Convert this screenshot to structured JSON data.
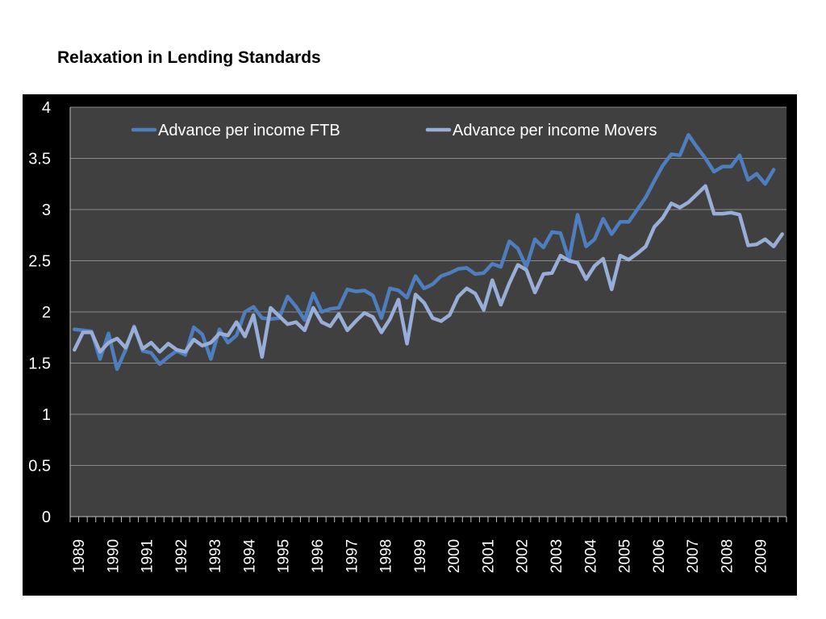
{
  "page": {
    "title": "Relaxation in Lending Standards"
  },
  "chart_data": {
    "type": "line",
    "title": "Relaxation in Lending Standards",
    "xlabel": "",
    "ylabel": "",
    "ylim": [
      0,
      4
    ],
    "y_ticks": [
      "0",
      "0.5",
      "1",
      "1.5",
      "2",
      "2.5",
      "3",
      "3.5",
      "4"
    ],
    "x_tick_labels": [
      "1989",
      "1990",
      "1991",
      "1992",
      "1993",
      "1994",
      "1995",
      "1996",
      "1997",
      "1998",
      "1999",
      "2000",
      "2001",
      "2002",
      "2003",
      "2004",
      "2005",
      "2006",
      "2007",
      "2008",
      "2009"
    ],
    "grid": true,
    "legend": "top",
    "background_color": "#404040",
    "frame_color": "#000000",
    "series": [
      {
        "name": "Advance per income FTB",
        "color": "#4f7ebe",
        "values": [
          1.83,
          1.82,
          1.81,
          1.54,
          1.79,
          1.44,
          1.63,
          1.86,
          1.62,
          1.6,
          1.49,
          1.56,
          1.62,
          1.58,
          1.85,
          1.78,
          1.54,
          1.83,
          1.7,
          1.77,
          2.0,
          2.05,
          1.94,
          1.93,
          1.94,
          2.15,
          2.05,
          1.92,
          2.18,
          2.0,
          2.03,
          2.04,
          2.22,
          2.2,
          2.21,
          2.16,
          1.94,
          2.23,
          2.21,
          2.14,
          2.35,
          2.23,
          2.27,
          2.35,
          2.38,
          2.42,
          2.43,
          2.37,
          2.38,
          2.47,
          2.44,
          2.69,
          2.62,
          2.44,
          2.71,
          2.63,
          2.78,
          2.77,
          2.51,
          2.95,
          2.64,
          2.71,
          2.91,
          2.76,
          2.88,
          2.88,
          3.0,
          3.12,
          3.28,
          3.43,
          3.54,
          3.53,
          3.73,
          3.61,
          3.5,
          3.37,
          3.42,
          3.42,
          3.53,
          3.29,
          3.35,
          3.25,
          3.39
        ]
      },
      {
        "name": "Advance per income Movers",
        "color": "#98aed6",
        "values": [
          1.63,
          1.8,
          1.8,
          1.61,
          1.7,
          1.74,
          1.65,
          1.85,
          1.64,
          1.7,
          1.61,
          1.69,
          1.63,
          1.61,
          1.73,
          1.67,
          1.7,
          1.79,
          1.77,
          1.9,
          1.76,
          1.97,
          1.56,
          2.04,
          1.96,
          1.88,
          1.9,
          1.82,
          2.04,
          1.9,
          1.86,
          1.98,
          1.82,
          1.91,
          1.99,
          1.95,
          1.8,
          1.93,
          2.12,
          1.69,
          2.17,
          2.09,
          1.94,
          1.91,
          1.97,
          2.15,
          2.23,
          2.18,
          2.02,
          2.31,
          2.07,
          2.28,
          2.46,
          2.41,
          2.19,
          2.37,
          2.38,
          2.55,
          2.5,
          2.48,
          2.32,
          2.45,
          2.52,
          2.22,
          2.55,
          2.51,
          2.57,
          2.64,
          2.83,
          2.92,
          3.06,
          3.02,
          3.07,
          3.15,
          3.23,
          2.96,
          2.96,
          2.97,
          2.95,
          2.65,
          2.66,
          2.71,
          2.64,
          2.76
        ]
      }
    ]
  }
}
